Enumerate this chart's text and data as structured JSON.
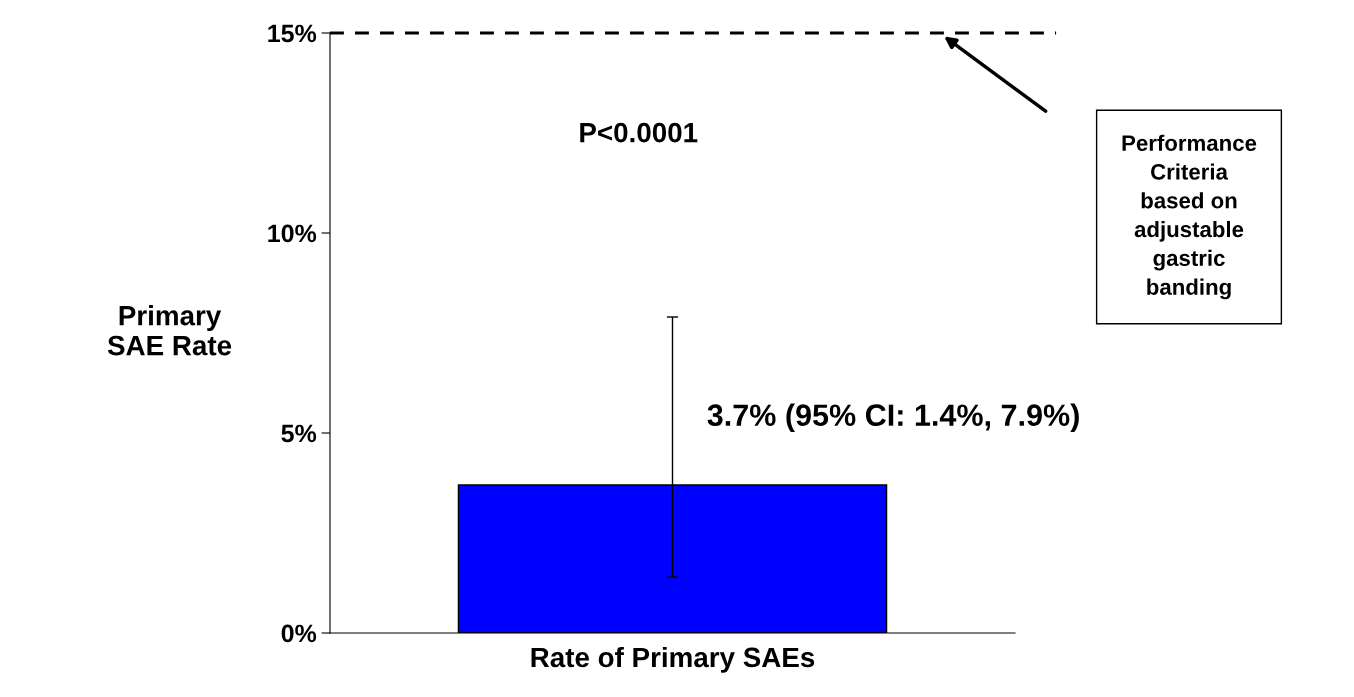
{
  "chart_data": {
    "type": "bar",
    "categories": [
      "Rate of Primary SAEs"
    ],
    "values": [
      3.7
    ],
    "color": "#0000ff",
    "errors": [
      [
        1.4,
        7.9
      ]
    ],
    "value_labels": [
      "3.7% (95% CI: 1.4%, 7.9%)"
    ],
    "ylabel": "Primary\nSAE Rate",
    "ylim": [
      0,
      15
    ],
    "yticks": [
      {
        "value": 0,
        "label": "0%"
      },
      {
        "value": 5,
        "label": "5%"
      },
      {
        "value": 10,
        "label": "10%"
      },
      {
        "value": 15,
        "label": "15%"
      }
    ],
    "ref_lines": [
      {
        "axis": "y",
        "value": 15,
        "label": "Performance\nCriteria\nbased on\nadjustable\ngastric\nbanding",
        "color": "#000000",
        "line_style": "dashed"
      }
    ],
    "annotations": [
      "P<0.0001"
    ],
    "grid": false,
    "legend": false
  }
}
